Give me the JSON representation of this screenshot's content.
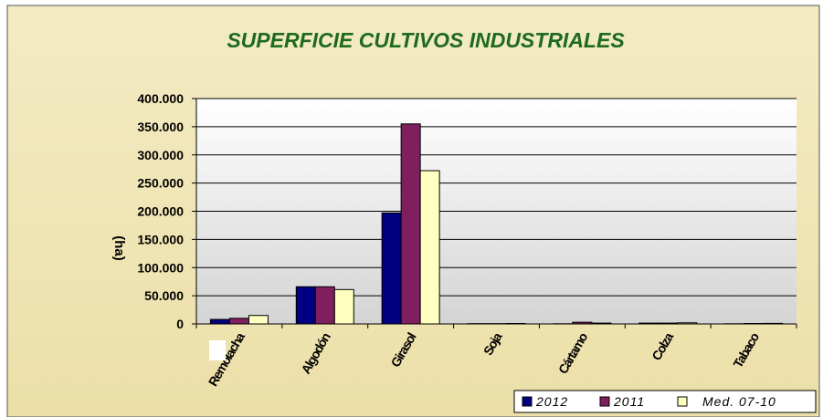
{
  "chart_data": {
    "type": "bar",
    "title": "SUPERFICIE CULTIVOS INDUSTRIALES",
    "y_label": "(ha)",
    "categories": [
      "Remolacha",
      "Algodón",
      "Girasol",
      "Soja",
      "Cártamo",
      "Colza",
      "Tabaco"
    ],
    "series": [
      {
        "name": "2012",
        "color": "#000080",
        "values": [
          8000,
          66000,
          197000,
          500,
          300,
          1500,
          300
        ]
      },
      {
        "name": "2011",
        "color": "#7f1f5f",
        "values": [
          10000,
          66000,
          355000,
          500,
          3000,
          1500,
          800
        ]
      },
      {
        "name": "Med. 07-10",
        "color": "#ffffc0",
        "values": [
          15000,
          61000,
          272000,
          800,
          1500,
          2000,
          1000
        ]
      }
    ],
    "ylim": [
      0,
      400000
    ],
    "yticks": [
      0,
      {
        "value": 50000,
        "label": "50.000"
      },
      {
        "value": 100000,
        "label": "100.000"
      },
      {
        "value": 150000,
        "label": "150.000"
      },
      {
        "value": 200000,
        "label": "200.000"
      },
      {
        "value": 250000,
        "label": "250.000"
      },
      {
        "value": 300000,
        "label": "300.000"
      },
      {
        "value": 350000,
        "label": "350.000"
      },
      {
        "value": 400000,
        "label": "400.000"
      }
    ],
    "grid": true,
    "legend": "bottom-right"
  }
}
